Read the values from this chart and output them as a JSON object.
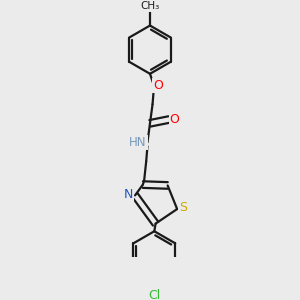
{
  "background_color": "#ebebeb",
  "bond_color": "#1a1a1a",
  "atom_colors": {
    "O": "#ff0000",
    "N": "#2255bb",
    "S": "#ccaa00",
    "Cl": "#33bb33",
    "C": "#1a1a1a",
    "H": "#7799bb"
  },
  "figsize": [
    3.0,
    3.0
  ],
  "dpi": 100
}
